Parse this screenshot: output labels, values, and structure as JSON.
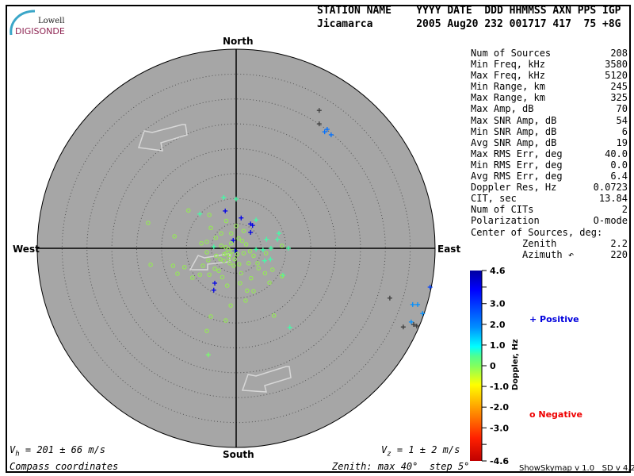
{
  "logo": {
    "line1": "Lowell",
    "line2": "DIGISONDE"
  },
  "header": {
    "line1": "STATION NAME    YYYY DATE  DDD HHMMSS AXN PPS IGP",
    "line2": "Jicamarca       2005 Aug20 232 001717 417  75 +8G"
  },
  "compass": {
    "north": "North",
    "south": "South",
    "west": "West",
    "east": "East"
  },
  "stats": [
    {
      "label": "Num of Sources",
      "value": "208"
    },
    {
      "label": "Min Freq, kHz",
      "value": "3580"
    },
    {
      "label": "Max Freq, kHz",
      "value": "5120"
    },
    {
      "label": "Min Range, km",
      "value": "245"
    },
    {
      "label": "Max Range, km",
      "value": "325"
    },
    {
      "label": "Max Amp, dB",
      "value": "70"
    },
    {
      "label": "Max SNR Amp, dB",
      "value": "54"
    },
    {
      "label": "Min SNR Amp, dB",
      "value": "6"
    },
    {
      "label": "Avg SNR Amp, dB",
      "value": "19"
    },
    {
      "label": "Max RMS Err, deg",
      "value": "40.0"
    },
    {
      "label": "Min RMS Err, deg",
      "value": "0.0"
    },
    {
      "label": "Avg RMS Err, deg",
      "value": "6.4"
    },
    {
      "label": "Doppler Res, Hz",
      "value": "0.0723"
    },
    {
      "label": "CIT, sec",
      "value": "13.84"
    },
    {
      "label": "Num of CITs",
      "value": "2"
    },
    {
      "label": "Polarization",
      "value": "O-mode"
    },
    {
      "label": "Center of Sources, deg:",
      "value": ""
    },
    {
      "label": "         Zenith",
      "value": "2.2"
    },
    {
      "label": "         Azimuth ↶",
      "value": "220"
    }
  ],
  "footer": {
    "vh": "V",
    "vh_sub": "h",
    "vh_value": " = 201 ± 66 m/s",
    "vz": "V",
    "vz_sub": "z",
    "vz_value": " = 1 ± 2 m/s",
    "coords": "Compass coordinates",
    "zenith": "Zenith: max 40°  step 5°",
    "version": "ShowSkymap v 1.0   SD v 4.2"
  },
  "colors": {
    "plot_bg": "#a6a6a6",
    "positive": "#0000dd",
    "negative": "#ee0000",
    "arrow": "#d8d8d8"
  },
  "chart_data": {
    "type": "scatter",
    "projection": "polar sky map (zenith angle, compass azimuth)",
    "zenith_max_deg": 40,
    "zenith_step_deg": 5,
    "colorbar": {
      "label": "Doppler, Hz",
      "range": [
        -4.6,
        4.6
      ],
      "ticks": [
        "4.6",
        "3.0",
        "2.0",
        "1.0",
        "0",
        "-1.0",
        "-2.0",
        "-3.0",
        "-4.6"
      ],
      "tick_values": [
        4.6,
        3.0,
        2.0,
        1.0,
        0,
        -1.0,
        -2.0,
        -3.0,
        -4.6
      ]
    },
    "legend": [
      {
        "name": "Positive",
        "marker": "plus"
      },
      {
        "name": "Negative",
        "marker": "circle"
      }
    ],
    "point_fields": [
      "east_deg",
      "north_deg",
      "doppler_hz"
    ],
    "series": [
      {
        "name": "Positive",
        "marker": "plus",
        "points": [
          [
            -2.2,
            7.5,
            4.0
          ],
          [
            1.0,
            6.1,
            4.0
          ],
          [
            2.9,
            4.9,
            4.0
          ],
          [
            3.3,
            4.6,
            4.0
          ],
          [
            2.9,
            3.2,
            4.0
          ],
          [
            -0.6,
            1.6,
            4.0
          ],
          [
            -4.3,
            -7.0,
            4.0
          ],
          [
            -4.5,
            -8.4,
            4.0
          ],
          [
            -0.2,
            -0.5,
            4.0
          ],
          [
            17.8,
            23.4,
            2.4
          ],
          [
            18.3,
            23.9,
            2.4
          ],
          [
            19.1,
            22.8,
            2.4
          ],
          [
            16.7,
            27.7,
            null
          ],
          [
            16.7,
            25.0,
            null
          ],
          [
            39.0,
            -7.8,
            3.0
          ],
          [
            30.9,
            -10.0,
            null
          ],
          [
            35.5,
            -11.3,
            2.0
          ],
          [
            36.5,
            -11.3,
            2.0
          ],
          [
            37.5,
            -13.1,
            2.0
          ],
          [
            35.2,
            -14.8,
            2.0
          ],
          [
            35.7,
            -15.3,
            null
          ],
          [
            33.6,
            -15.8,
            null
          ],
          [
            36.3,
            -15.6,
            null
          ],
          [
            -2.5,
            10.2,
            0.6
          ],
          [
            0,
            9.9,
            0.6
          ],
          [
            -7.3,
            6.9,
            0.6
          ],
          [
            4.0,
            5.7,
            0.6
          ],
          [
            8.6,
            3.0,
            0.6
          ],
          [
            8.3,
            1.8,
            0.6
          ],
          [
            6.1,
            1.8,
            0.6
          ],
          [
            10.5,
            0,
            0.6
          ],
          [
            7.0,
            0,
            0.6
          ],
          [
            5.4,
            -0.3,
            0.6
          ],
          [
            4.0,
            -0.2,
            0.6
          ],
          [
            -4.5,
            0.3,
            0.6
          ],
          [
            5.7,
            -2.5,
            0.6
          ],
          [
            6.9,
            -2.2,
            0.6
          ],
          [
            9.4,
            -5.4,
            0.6
          ],
          [
            10.8,
            -15.9,
            0.6
          ],
          [
            -5.6,
            -21.4,
            0.1
          ]
        ]
      },
      {
        "name": "Negative",
        "marker": "circle",
        "points": [
          [
            -9.6,
            7.6,
            -0.3
          ],
          [
            -17.7,
            5.1,
            -0.3
          ],
          [
            -12.4,
            2.4,
            -0.3
          ],
          [
            -17.2,
            -3.3,
            -0.3
          ],
          [
            -11.8,
            -5.1,
            -0.3
          ],
          [
            -8.8,
            -5.9,
            -0.3
          ],
          [
            -5.1,
            -13.7,
            -0.3
          ],
          [
            -5.9,
            -16.6,
            -0.3
          ],
          [
            -2.1,
            -14.5,
            -0.3
          ],
          [
            -1.1,
            -11.5,
            -0.3
          ],
          [
            1.9,
            -10.5,
            -0.3
          ],
          [
            3.5,
            -8.6,
            -0.3
          ],
          [
            7.6,
            -13.5,
            -0.3
          ],
          [
            6.7,
            -6.9,
            -0.3
          ],
          [
            9.2,
            -5.6,
            -0.3
          ],
          [
            9.2,
            0.5,
            -0.3
          ],
          [
            7.3,
            -4.3,
            -0.3
          ],
          [
            -5.4,
            6.7,
            -0.3
          ],
          [
            -5.1,
            4.1,
            -0.3
          ],
          [
            -4.1,
            2.1,
            -0.3
          ],
          [
            -7.0,
            1.0,
            -0.3
          ],
          [
            -5.9,
            1.3,
            -0.3
          ],
          [
            -5.9,
            -0.8,
            -0.3
          ],
          [
            -5.6,
            -2.4,
            -0.3
          ],
          [
            -6.7,
            -3.5,
            -0.3
          ],
          [
            -7.3,
            -5.3,
            -0.3
          ],
          [
            -10.4,
            -3.8,
            -0.3
          ],
          [
            -12.7,
            -3.5,
            -0.3
          ],
          [
            -5.4,
            -5.3,
            -0.3
          ],
          [
            -4.3,
            -4.1,
            -0.3
          ],
          [
            -2,
            -1,
            -0.3
          ],
          [
            -3,
            0.5,
            -0.3
          ],
          [
            -1.5,
            -2,
            -0.3
          ],
          [
            -2.5,
            -2.5,
            -0.3
          ],
          [
            -1,
            1,
            -0.3
          ],
          [
            0.5,
            2,
            -0.3
          ],
          [
            1.5,
            -1,
            -0.3
          ],
          [
            2.5,
            -3,
            -0.3
          ],
          [
            -0.5,
            -3.5,
            -0.3
          ],
          [
            1,
            -5,
            -0.3
          ],
          [
            3,
            -6,
            -0.3
          ],
          [
            -3.5,
            -4.5,
            -0.3
          ],
          [
            -1,
            3,
            -0.3
          ],
          [
            0,
            4.5,
            -0.3
          ],
          [
            1.5,
            3.5,
            -0.3
          ],
          [
            2,
            0.8,
            -0.3
          ],
          [
            3.5,
            -1.5,
            -0.3
          ],
          [
            4.5,
            -4,
            -0.3
          ],
          [
            -2,
            5.5,
            -0.3
          ],
          [
            0.8,
            -7,
            -0.3
          ],
          [
            -1.8,
            -7.5,
            -0.3
          ],
          [
            2.2,
            -8.5,
            -0.3
          ],
          [
            4.3,
            -3,
            -0.3
          ],
          [
            5.8,
            -5,
            -0.3
          ],
          [
            6,
            -1,
            -0.3
          ],
          [
            -3,
            3,
            -0.3
          ],
          [
            -4,
            -1.5,
            -0.3
          ],
          [
            -0.3,
            -2.2,
            -0.3
          ],
          [
            1.2,
            1.5,
            -0.3
          ],
          [
            -2.8,
            -5.8,
            -0.3
          ],
          [
            -1.6,
            -0.2,
            -0.3
          ],
          [
            -2.4,
            -1.2,
            -0.3
          ],
          [
            -1.2,
            -1.4,
            -0.3
          ],
          [
            -3.2,
            -2.2,
            -0.3
          ],
          [
            -0.8,
            -0.6,
            -0.3
          ],
          [
            0.2,
            -1.2,
            -0.3
          ],
          [
            -2.1,
            0.2,
            -0.3
          ],
          [
            -1.3,
            -3.0,
            -0.3
          ],
          [
            0.6,
            -3.2,
            -0.3
          ],
          [
            2.8,
            -0.6,
            -0.3
          ]
        ]
      }
    ]
  }
}
